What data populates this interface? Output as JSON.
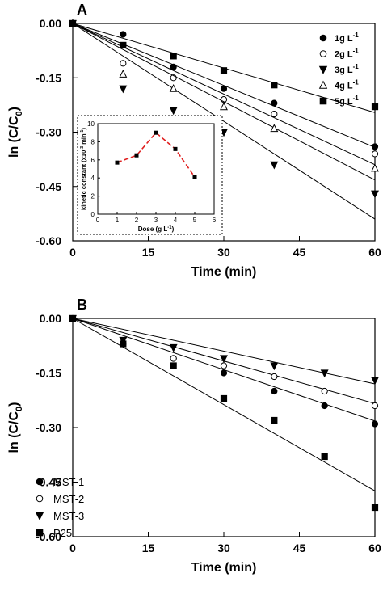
{
  "chart_data": [
    {
      "type": "scatter",
      "panel_label": "A",
      "xlabel": "Time (min)",
      "ylabel": "ln (C/C₀)",
      "ylabel_parts": {
        "main": "ln (C/C",
        "sub": "0",
        "close": ")"
      },
      "xlim": [
        0,
        60
      ],
      "ylim": [
        -0.6,
        0.0
      ],
      "xticks": [
        0,
        15,
        30,
        45,
        60
      ],
      "yticks": [
        0.0,
        -0.15,
        -0.3,
        -0.45,
        -0.6
      ],
      "xtick_labels": [
        "0",
        "15",
        "30",
        "45",
        "60"
      ],
      "ytick_labels": [
        "0.00",
        "-0.15",
        "-0.30",
        "-0.45",
        "-0.60"
      ],
      "legend_position": "top-right",
      "series": [
        {
          "name": "1g L-1",
          "label_main": "1g L",
          "label_sup": "-1",
          "marker": "filled-circle",
          "x": [
            0,
            10,
            20,
            30,
            40,
            60
          ],
          "y": [
            0,
            -0.03,
            -0.12,
            -0.18,
            -0.22,
            -0.34
          ],
          "fit_slope": -0.0057
        },
        {
          "name": "2g L-1",
          "label_main": "2g L",
          "label_sup": "-1",
          "marker": "open-circle",
          "x": [
            0,
            10,
            20,
            30,
            40,
            60
          ],
          "y": [
            0,
            -0.11,
            -0.15,
            -0.21,
            -0.25,
            -0.36
          ],
          "fit_slope": -0.0065
        },
        {
          "name": "3g L-1",
          "label_main": "3g L",
          "label_sup": "-1",
          "marker": "filled-triangle-down",
          "x": [
            0,
            10,
            20,
            30,
            40,
            60
          ],
          "y": [
            0,
            -0.18,
            -0.24,
            -0.3,
            -0.39,
            -0.47
          ],
          "fit_slope": -0.009
        },
        {
          "name": "4g L-1",
          "label_main": "4g L",
          "label_sup": "-1",
          "marker": "open-triangle-up",
          "x": [
            0,
            10,
            20,
            30,
            40,
            60
          ],
          "y": [
            0,
            -0.14,
            -0.18,
            -0.23,
            -0.29,
            -0.4
          ],
          "fit_slope": -0.0072
        },
        {
          "name": "5g L-1",
          "label_main": "5g L",
          "label_sup": "-1",
          "marker": "filled-square",
          "x": [
            0,
            10,
            20,
            30,
            40,
            60
          ],
          "y": [
            0,
            -0.06,
            -0.09,
            -0.13,
            -0.17,
            -0.23
          ],
          "fit_slope": -0.0041
        }
      ],
      "inset": {
        "type": "line",
        "xlabel": "Dose (g L-1)",
        "xlabel_parts": {
          "main": "Dose (g L",
          "sup": "-1",
          "close": ")"
        },
        "ylabel": "kinetic constant (x10-3 min-1)",
        "ylabel_parts": {
          "a": "kinetic constant (x10",
          "sup1": "-3",
          "b": " min",
          "sup2": "-1",
          "c": ")"
        },
        "xlim": [
          0,
          6
        ],
        "ylim": [
          0,
          10
        ],
        "xticks": [
          0,
          1,
          2,
          3,
          4,
          5,
          6
        ],
        "yticks": [
          0,
          2,
          4,
          6,
          8,
          10
        ],
        "x": [
          1,
          2,
          3,
          4,
          5
        ],
        "y": [
          5.7,
          6.5,
          9.0,
          7.2,
          4.1
        ],
        "line_color": "#e02020"
      }
    },
    {
      "type": "scatter",
      "panel_label": "B",
      "xlabel": "Time (min)",
      "ylabel": "ln (C/C₀)",
      "ylabel_parts": {
        "main": "ln (C/C",
        "sub": "0",
        "close": ")"
      },
      "xlim": [
        0,
        60
      ],
      "ylim": [
        -0.6,
        0.0
      ],
      "xticks": [
        0,
        15,
        30,
        45,
        60
      ],
      "yticks": [
        0.0,
        -0.15,
        -0.3,
        -0.45,
        -0.6
      ],
      "xtick_labels": [
        "0",
        "15",
        "30",
        "45",
        "60"
      ],
      "ytick_labels": [
        "0.00",
        "-0.15",
        "-0.30",
        "-0.45",
        "-0.60"
      ],
      "legend_position": "bottom-left",
      "series": [
        {
          "name": "MST-1",
          "label_main": "MST-1",
          "label_sup": "",
          "marker": "filled-circle",
          "x": [
            0,
            10,
            20,
            30,
            40,
            50,
            60
          ],
          "y": [
            0,
            -0.07,
            -0.11,
            -0.15,
            -0.2,
            -0.24,
            -0.29
          ],
          "fit_slope": -0.0047
        },
        {
          "name": "MST-2",
          "label_main": "MST-2",
          "label_sup": "",
          "marker": "open-circle",
          "x": [
            0,
            10,
            20,
            30,
            40,
            50,
            60
          ],
          "y": [
            0,
            -0.07,
            -0.11,
            -0.13,
            -0.16,
            -0.2,
            -0.24
          ],
          "fit_slope": -0.0039
        },
        {
          "name": "MST-3",
          "label_main": "MST-3",
          "label_sup": "",
          "marker": "filled-triangle-down",
          "x": [
            0,
            10,
            20,
            30,
            40,
            50,
            60
          ],
          "y": [
            0,
            -0.06,
            -0.08,
            -0.11,
            -0.13,
            -0.15,
            -0.17
          ],
          "fit_slope": -0.003
        },
        {
          "name": "P25",
          "label_main": "P25",
          "label_sup": "",
          "marker": "filled-square",
          "x": [
            0,
            10,
            20,
            30,
            40,
            50,
            60
          ],
          "y": [
            0,
            -0.07,
            -0.13,
            -0.22,
            -0.28,
            -0.38,
            -0.52
          ],
          "fit_slope": -0.0079
        }
      ]
    }
  ]
}
